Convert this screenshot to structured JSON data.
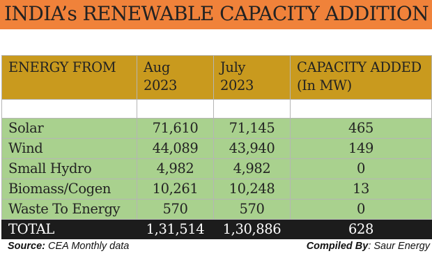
{
  "title": "INDIA’s RENEWABLE CAPACITY ADDITION",
  "colors": {
    "title_bg": "#f0823a",
    "header_bg": "#c99a1e",
    "row_bg": "#a9d18e",
    "total_bg": "#1c1c1c"
  },
  "table": {
    "headers": [
      {
        "line1": "ENERGY FROM",
        "line2": ""
      },
      {
        "line1": "Aug",
        "line2": "2023"
      },
      {
        "line1": "July",
        "line2": "2023"
      },
      {
        "line1": "CAPACITY ADDED",
        "line2": "(In MW)"
      }
    ],
    "rows": [
      {
        "source": "Solar",
        "aug_2023": "71,610",
        "july_2023": "71,145",
        "added": "465"
      },
      {
        "source": "Wind",
        "aug_2023": "44,089",
        "july_2023": "43,940",
        "added": "149"
      },
      {
        "source": "Small Hydro",
        "aug_2023": "4,982",
        "july_2023": "4,982",
        "added": "0"
      },
      {
        "source": "Biomass/Cogen",
        "aug_2023": "10,261",
        "july_2023": "10,248",
        "added": "13"
      },
      {
        "source": "Waste To Energy",
        "aug_2023": "570",
        "july_2023": "570",
        "added": "0"
      }
    ],
    "total": {
      "label": "TOTAL",
      "aug_2023": "1,31,514",
      "july_2023": "1,30,886",
      "added": "628"
    }
  },
  "footer": {
    "source_label": "Source:",
    "source_value": " CEA Monthly data",
    "compiled_label": "Compiled By",
    "compiled_value": ": Saur Energy"
  }
}
